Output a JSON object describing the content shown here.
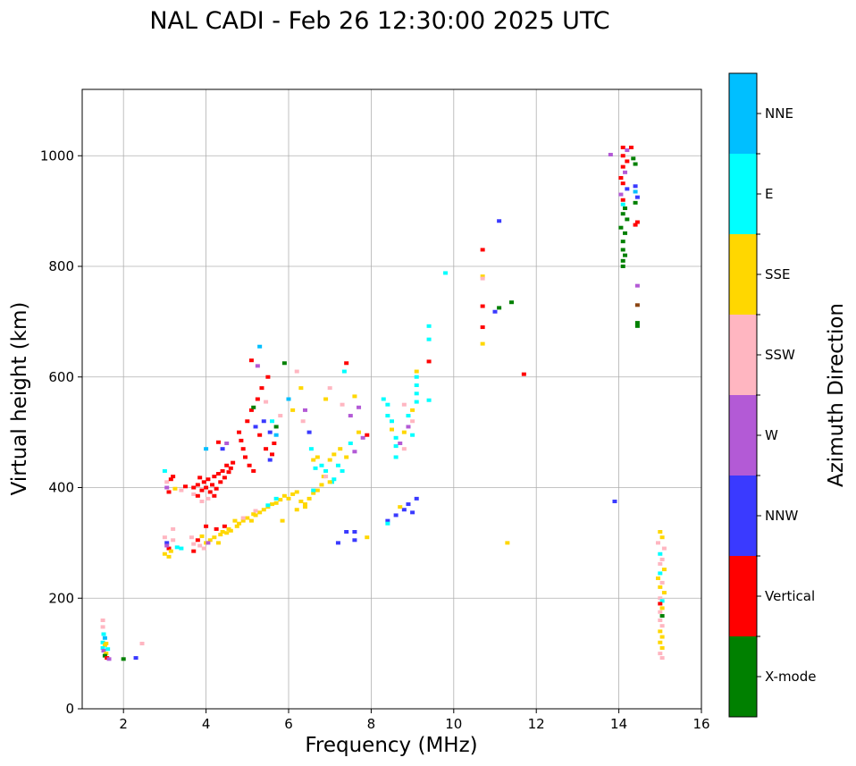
{
  "chart_data": {
    "type": "scatter",
    "title": "NAL CADI - Feb 26 12:30:00 2025 UTC",
    "xlabel": "Frequency (MHz)",
    "ylabel": "Virtual height (km)",
    "xlim": [
      1,
      16
    ],
    "ylim": [
      0,
      1120
    ],
    "xticks": [
      2,
      4,
      6,
      8,
      10,
      12,
      14,
      16
    ],
    "yticks": [
      0,
      200,
      400,
      600,
      800,
      1000
    ],
    "grid": true,
    "colorbar": {
      "title": "Azimuth Direction",
      "categories": [
        {
          "name": "X-mode",
          "color": "#008000"
        },
        {
          "name": "Vertical",
          "color": "#ff0000"
        },
        {
          "name": "NNW",
          "color": "#3a3aff"
        },
        {
          "name": "W",
          "color": "#b35ad6"
        },
        {
          "name": "SSW",
          "color": "#ffb6c1"
        },
        {
          "name": "SSE",
          "color": "#ffd700"
        },
        {
          "name": "E",
          "color": "#00ffff"
        },
        {
          "name": "NNE",
          "color": "#00bfff"
        }
      ]
    },
    "colors": {
      "extra_brown": "#8b4513"
    },
    "points": [
      [
        1.5,
        160,
        4
      ],
      [
        1.5,
        148,
        4
      ],
      [
        1.52,
        135,
        6
      ],
      [
        1.55,
        128,
        7
      ],
      [
        1.5,
        120,
        6
      ],
      [
        1.55,
        115,
        5
      ],
      [
        1.5,
        110,
        6
      ],
      [
        1.52,
        105,
        3
      ],
      [
        1.58,
        100,
        5
      ],
      [
        1.55,
        96,
        0
      ],
      [
        1.6,
        92,
        1
      ],
      [
        1.65,
        90,
        3
      ],
      [
        1.58,
        118,
        5
      ],
      [
        1.62,
        108,
        6
      ],
      [
        2.0,
        90,
        0
      ],
      [
        2.3,
        92,
        2
      ],
      [
        2.45,
        118,
        4
      ],
      [
        3.0,
        430,
        6
      ],
      [
        3.05,
        410,
        4
      ],
      [
        3.05,
        400,
        3
      ],
      [
        3.1,
        392,
        1
      ],
      [
        3.15,
        415,
        1
      ],
      [
        3.2,
        420,
        1
      ],
      [
        3.25,
        398,
        5
      ],
      [
        3.4,
        395,
        4
      ],
      [
        3.5,
        402,
        1
      ],
      [
        3.0,
        310,
        4
      ],
      [
        3.05,
        300,
        2
      ],
      [
        3.1,
        290,
        1
      ],
      [
        3.0,
        280,
        5
      ],
      [
        3.1,
        275,
        5
      ],
      [
        3.15,
        285,
        5
      ],
      [
        3.05,
        295,
        3
      ],
      [
        3.2,
        305,
        4
      ],
      [
        3.2,
        325,
        4
      ],
      [
        3.3,
        292,
        6
      ],
      [
        3.4,
        290,
        6
      ],
      [
        3.7,
        400,
        1
      ],
      [
        3.7,
        388,
        4
      ],
      [
        3.8,
        405,
        1
      ],
      [
        3.8,
        385,
        1
      ],
      [
        3.85,
        418,
        1
      ],
      [
        3.9,
        395,
        1
      ],
      [
        3.95,
        410,
        1
      ],
      [
        4.0,
        400,
        1
      ],
      [
        4.05,
        415,
        1
      ],
      [
        4.1,
        392,
        1
      ],
      [
        4.15,
        405,
        1
      ],
      [
        4.2,
        420,
        1
      ],
      [
        4.25,
        398,
        1
      ],
      [
        4.3,
        425,
        1
      ],
      [
        4.35,
        410,
        1
      ],
      [
        4.4,
        430,
        1
      ],
      [
        4.45,
        418,
        1
      ],
      [
        4.5,
        440,
        1
      ],
      [
        4.55,
        428,
        1
      ],
      [
        4.6,
        435,
        1
      ],
      [
        4.65,
        445,
        1
      ],
      [
        3.9,
        375,
        4
      ],
      [
        4.0,
        470,
        7
      ],
      [
        4.05,
        380,
        4
      ],
      [
        4.2,
        385,
        1
      ],
      [
        4.3,
        482,
        1
      ],
      [
        4.4,
        470,
        2
      ],
      [
        4.5,
        480,
        3
      ],
      [
        3.65,
        310,
        4
      ],
      [
        3.7,
        298,
        4
      ],
      [
        3.7,
        285,
        1
      ],
      [
        3.8,
        305,
        1
      ],
      [
        3.85,
        295,
        4
      ],
      [
        3.9,
        312,
        5
      ],
      [
        3.95,
        290,
        4
      ],
      [
        4.0,
        300,
        5
      ],
      [
        4.0,
        330,
        1
      ],
      [
        4.1,
        305,
        5
      ],
      [
        4.2,
        310,
        5
      ],
      [
        4.25,
        325,
        1
      ],
      [
        4.3,
        300,
        5
      ],
      [
        4.35,
        315,
        5
      ],
      [
        4.4,
        320,
        5
      ],
      [
        4.45,
        330,
        1
      ],
      [
        4.5,
        318,
        5
      ],
      [
        4.55,
        325,
        5
      ],
      [
        4.6,
        322,
        5
      ],
      [
        4.7,
        340,
        5
      ],
      [
        4.75,
        330,
        5
      ],
      [
        4.8,
        335,
        5
      ],
      [
        4.9,
        340,
        5
      ],
      [
        5.0,
        345,
        5
      ],
      [
        5.1,
        340,
        5
      ],
      [
        5.15,
        352,
        5
      ],
      [
        5.2,
        350,
        5
      ],
      [
        5.3,
        355,
        5
      ],
      [
        5.4,
        360,
        5
      ],
      [
        5.5,
        365,
        5
      ],
      [
        5.6,
        370,
        5
      ],
      [
        5.7,
        372,
        5
      ],
      [
        5.8,
        378,
        5
      ],
      [
        5.85,
        340,
        5
      ],
      [
        5.9,
        385,
        5
      ],
      [
        6.0,
        380,
        5
      ],
      [
        6.1,
        388,
        5
      ],
      [
        6.2,
        392,
        5
      ],
      [
        6.3,
        375,
        5
      ],
      [
        6.4,
        370,
        5
      ],
      [
        6.5,
        380,
        5
      ],
      [
        6.6,
        390,
        5
      ],
      [
        6.7,
        395,
        5
      ],
      [
        6.2,
        360,
        5
      ],
      [
        6.4,
        365,
        5
      ],
      [
        4.05,
        300,
        3
      ],
      [
        4.9,
        345,
        4
      ],
      [
        5.2,
        358,
        4
      ],
      [
        5.5,
        368,
        6
      ],
      [
        5.7,
        380,
        6
      ],
      [
        4.8,
        500,
        1
      ],
      [
        4.85,
        485,
        1
      ],
      [
        4.9,
        470,
        1
      ],
      [
        4.95,
        455,
        1
      ],
      [
        5.0,
        520,
        1
      ],
      [
        5.05,
        440,
        1
      ],
      [
        5.1,
        540,
        1
      ],
      [
        5.15,
        430,
        1
      ],
      [
        5.2,
        510,
        2
      ],
      [
        5.25,
        560,
        1
      ],
      [
        5.3,
        495,
        1
      ],
      [
        5.35,
        580,
        1
      ],
      [
        5.4,
        520,
        2
      ],
      [
        5.45,
        470,
        1
      ],
      [
        5.5,
        600,
        1
      ],
      [
        5.55,
        500,
        2
      ],
      [
        5.6,
        460,
        1
      ],
      [
        5.65,
        480,
        1
      ],
      [
        5.7,
        510,
        0
      ],
      [
        5.8,
        530,
        4
      ],
      [
        5.1,
        630,
        1
      ],
      [
        5.25,
        620,
        3
      ],
      [
        5.3,
        655,
        7
      ],
      [
        5.15,
        545,
        0
      ],
      [
        5.45,
        555,
        4
      ],
      [
        5.55,
        450,
        2
      ],
      [
        5.7,
        495,
        7
      ],
      [
        5.6,
        520,
        6
      ],
      [
        5.9,
        625,
        0
      ],
      [
        6.0,
        560,
        7
      ],
      [
        6.1,
        540,
        5
      ],
      [
        6.2,
        610,
        4
      ],
      [
        6.3,
        580,
        5
      ],
      [
        6.35,
        520,
        4
      ],
      [
        6.4,
        540,
        3
      ],
      [
        6.5,
        500,
        2
      ],
      [
        6.55,
        470,
        6
      ],
      [
        6.6,
        450,
        5
      ],
      [
        6.65,
        435,
        6
      ],
      [
        6.7,
        455,
        5
      ],
      [
        6.8,
        440,
        6
      ],
      [
        6.85,
        420,
        5
      ],
      [
        6.9,
        430,
        6
      ],
      [
        7.0,
        450,
        5
      ],
      [
        7.05,
        410,
        6
      ],
      [
        7.1,
        460,
        5
      ],
      [
        7.2,
        440,
        6
      ],
      [
        7.25,
        470,
        5
      ],
      [
        7.3,
        430,
        6
      ],
      [
        7.4,
        455,
        5
      ],
      [
        7.5,
        480,
        6
      ],
      [
        7.6,
        465,
        3
      ],
      [
        7.7,
        500,
        5
      ],
      [
        7.8,
        490,
        3
      ],
      [
        7.9,
        495,
        1
      ],
      [
        7.0,
        410,
        5
      ],
      [
        7.1,
        415,
        6
      ],
      [
        6.8,
        405,
        5
      ],
      [
        6.6,
        395,
        6
      ],
      [
        6.9,
        420,
        4
      ],
      [
        7.3,
        550,
        4
      ],
      [
        7.6,
        565,
        5
      ],
      [
        7.0,
        580,
        4
      ],
      [
        6.9,
        560,
        5
      ],
      [
        7.5,
        530,
        3
      ],
      [
        7.7,
        545,
        3
      ],
      [
        7.35,
        610,
        6
      ],
      [
        7.4,
        625,
        1
      ],
      [
        7.2,
        300,
        2
      ],
      [
        7.4,
        320,
        2
      ],
      [
        7.6,
        305,
        2
      ],
      [
        7.6,
        320,
        2
      ],
      [
        7.9,
        310,
        5
      ],
      [
        8.3,
        560,
        6
      ],
      [
        8.4,
        550,
        6
      ],
      [
        8.4,
        530,
        6
      ],
      [
        8.5,
        520,
        6
      ],
      [
        8.5,
        505,
        5
      ],
      [
        8.6,
        490,
        6
      ],
      [
        8.6,
        475,
        6
      ],
      [
        8.6,
        455,
        6
      ],
      [
        8.7,
        480,
        3
      ],
      [
        8.8,
        470,
        4
      ],
      [
        8.8,
        500,
        5
      ],
      [
        8.9,
        510,
        3
      ],
      [
        9.0,
        520,
        4
      ],
      [
        9.0,
        540,
        5
      ],
      [
        9.1,
        555,
        6
      ],
      [
        9.1,
        570,
        6
      ],
      [
        9.1,
        585,
        6
      ],
      [
        9.1,
        600,
        6
      ],
      [
        9.1,
        610,
        5
      ],
      [
        9.0,
        495,
        6
      ],
      [
        8.9,
        530,
        6
      ],
      [
        8.8,
        550,
        4
      ],
      [
        9.4,
        558,
        6
      ],
      [
        9.4,
        628,
        1
      ],
      [
        9.4,
        668,
        6
      ],
      [
        9.4,
        692,
        6
      ],
      [
        8.4,
        340,
        2
      ],
      [
        8.6,
        350,
        2
      ],
      [
        8.8,
        360,
        2
      ],
      [
        8.9,
        370,
        2
      ],
      [
        9.1,
        380,
        2
      ],
      [
        8.7,
        365,
        5
      ],
      [
        8.4,
        335,
        6
      ],
      [
        9.0,
        355,
        2
      ],
      [
        9.8,
        788,
        6
      ],
      [
        10.7,
        830,
        1
      ],
      [
        10.7,
        782,
        5
      ],
      [
        10.7,
        778,
        4
      ],
      [
        10.7,
        728,
        1
      ],
      [
        10.7,
        690,
        1
      ],
      [
        10.7,
        660,
        5
      ],
      [
        11.0,
        718,
        2
      ],
      [
        11.1,
        882,
        2
      ],
      [
        11.1,
        725,
        0
      ],
      [
        11.4,
        735,
        0
      ],
      [
        11.3,
        300,
        5
      ],
      [
        11.7,
        605,
        1
      ],
      [
        13.9,
        375,
        2
      ],
      [
        14.1,
        1015,
        1
      ],
      [
        14.2,
        1010,
        3
      ],
      [
        14.1,
        1000,
        1
      ],
      [
        14.2,
        990,
        1
      ],
      [
        14.1,
        980,
        1
      ],
      [
        14.15,
        970,
        3
      ],
      [
        14.05,
        960,
        1
      ],
      [
        14.1,
        950,
        1
      ],
      [
        14.2,
        940,
        2
      ],
      [
        14.05,
        930,
        3
      ],
      [
        14.1,
        920,
        1
      ],
      [
        14.1,
        912,
        6
      ],
      [
        14.15,
        905,
        0
      ],
      [
        14.1,
        895,
        0
      ],
      [
        14.2,
        885,
        0
      ],
      [
        14.05,
        870,
        0
      ],
      [
        14.15,
        860,
        0
      ],
      [
        14.1,
        845,
        0
      ],
      [
        14.1,
        830,
        0
      ],
      [
        14.15,
        820,
        0
      ],
      [
        14.1,
        810,
        0
      ],
      [
        14.1,
        800,
        0
      ],
      [
        14.3,
        1015,
        1
      ],
      [
        14.35,
        995,
        0
      ],
      [
        14.4,
        985,
        0
      ],
      [
        14.4,
        945,
        2
      ],
      [
        14.4,
        935,
        7
      ],
      [
        14.45,
        925,
        2
      ],
      [
        14.4,
        915,
        0
      ],
      [
        14.45,
        880,
        1
      ],
      [
        14.4,
        875,
        1
      ],
      [
        14.45,
        765,
        3
      ],
      [
        14.45,
        730,
        8
      ],
      [
        14.45,
        698,
        0
      ],
      [
        14.45,
        692,
        0
      ],
      [
        13.8,
        1002,
        3
      ],
      [
        15.0,
        320,
        5
      ],
      [
        15.05,
        310,
        5
      ],
      [
        14.95,
        300,
        4
      ],
      [
        15.1,
        290,
        4
      ],
      [
        15.0,
        280,
        6
      ],
      [
        15.05,
        270,
        4
      ],
      [
        15.0,
        262,
        4
      ],
      [
        15.1,
        252,
        5
      ],
      [
        15.0,
        245,
        6
      ],
      [
        14.95,
        236,
        5
      ],
      [
        15.05,
        228,
        4
      ],
      [
        15.0,
        220,
        5
      ],
      [
        15.1,
        210,
        5
      ],
      [
        15.0,
        200,
        4
      ],
      [
        15.05,
        195,
        6
      ],
      [
        15.0,
        190,
        1
      ],
      [
        15.05,
        182,
        5
      ],
      [
        15.0,
        175,
        4
      ],
      [
        15.05,
        168,
        0
      ],
      [
        15.0,
        160,
        4
      ],
      [
        15.05,
        150,
        4
      ],
      [
        15.0,
        140,
        5
      ],
      [
        15.05,
        130,
        5
      ],
      [
        15.0,
        120,
        5
      ],
      [
        15.05,
        110,
        5
      ],
      [
        15.0,
        100,
        4
      ],
      [
        15.05,
        92,
        4
      ]
    ]
  }
}
